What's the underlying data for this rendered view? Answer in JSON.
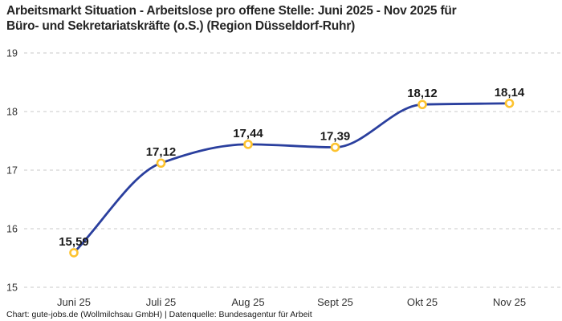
{
  "chart_data": {
    "type": "line",
    "title": "Arbeitsmarkt Situation - Arbeitslose pro offene Stelle: Juni 2025 - Nov 2025 für\nBüro- und Sekretariatskräfte (o.S.) (Region Düsseldorf-Ruhr)",
    "categories": [
      "Juni 25",
      "Juli 25",
      "Aug 25",
      "Sept 25",
      "Okt 25",
      "Nov 25"
    ],
    "values": [
      15.59,
      17.12,
      17.44,
      17.39,
      18.12,
      18.14
    ],
    "value_labels": [
      "15,59",
      "17,12",
      "17,44",
      "17,39",
      "18,12",
      "18,14"
    ],
    "xlabel": "",
    "ylabel": "",
    "ylim": [
      15,
      19
    ],
    "yticks": [
      15,
      16,
      17,
      18,
      19
    ],
    "grid": "horizontal-dashed",
    "legend": "none",
    "colors": {
      "line": "#2a3f9e",
      "marker_ring": "#fdc32f",
      "marker_fill": "#ffffff",
      "gridline": "#c9c9c9",
      "axis_text": "#333333",
      "value_label": "#1a1a1a"
    }
  },
  "footer": {
    "text": "Chart: gute-jobs.de (Wollmilchsau GmbH) | Datenquelle: Bundesagentur für Arbeit"
  }
}
